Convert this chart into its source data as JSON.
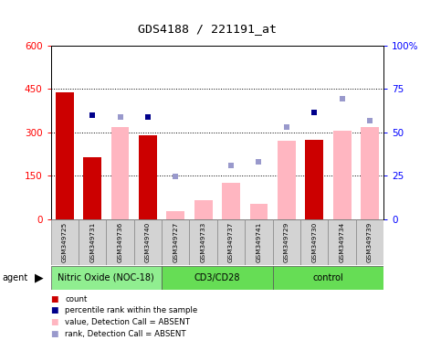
{
  "title": "GDS4188 / 221191_at",
  "samples": [
    "GSM349725",
    "GSM349731",
    "GSM349736",
    "GSM349740",
    "GSM349727",
    "GSM349733",
    "GSM349737",
    "GSM349741",
    "GSM349729",
    "GSM349730",
    "GSM349734",
    "GSM349739"
  ],
  "count_values": [
    440,
    215,
    null,
    290,
    null,
    null,
    null,
    null,
    null,
    275,
    null,
    null
  ],
  "count_absent_values": [
    null,
    null,
    320,
    null,
    28,
    65,
    125,
    55,
    270,
    null,
    305,
    318
  ],
  "percentile_present": [
    null,
    360,
    null,
    355,
    null,
    null,
    null,
    null,
    null,
    370,
    null,
    null
  ],
  "rank_absent": [
    null,
    null,
    355,
    null,
    148,
    null,
    185,
    200,
    318,
    null,
    418,
    342
  ],
  "ylim": [
    0,
    600
  ],
  "y2lim": [
    0,
    100
  ],
  "yticks": [
    0,
    150,
    300,
    450,
    600
  ],
  "ytick_labels": [
    "0",
    "150",
    "300",
    "450",
    "600"
  ],
  "y2ticks": [
    0,
    25,
    50,
    75,
    100
  ],
  "y2tick_labels": [
    "0",
    "25",
    "50",
    "75",
    "100%"
  ],
  "bar_color_present": "#cc0000",
  "bar_color_absent": "#ffb6c1",
  "dot_color_present": "#00008b",
  "dot_color_absent": "#9999cc",
  "group_spans": [
    {
      "start": 0,
      "end": 3,
      "label": "Nitric Oxide (NOC-18)",
      "color": "#90ee90"
    },
    {
      "start": 4,
      "end": 7,
      "label": "CD3/CD28",
      "color": "#66dd55"
    },
    {
      "start": 8,
      "end": 11,
      "label": "control",
      "color": "#66dd55"
    }
  ],
  "legend": [
    {
      "color": "#cc0000",
      "label": "count"
    },
    {
      "color": "#00008b",
      "label": "percentile rank within the sample"
    },
    {
      "color": "#ffb6c1",
      "label": "value, Detection Call = ABSENT"
    },
    {
      "color": "#9999cc",
      "label": "rank, Detection Call = ABSENT"
    }
  ]
}
